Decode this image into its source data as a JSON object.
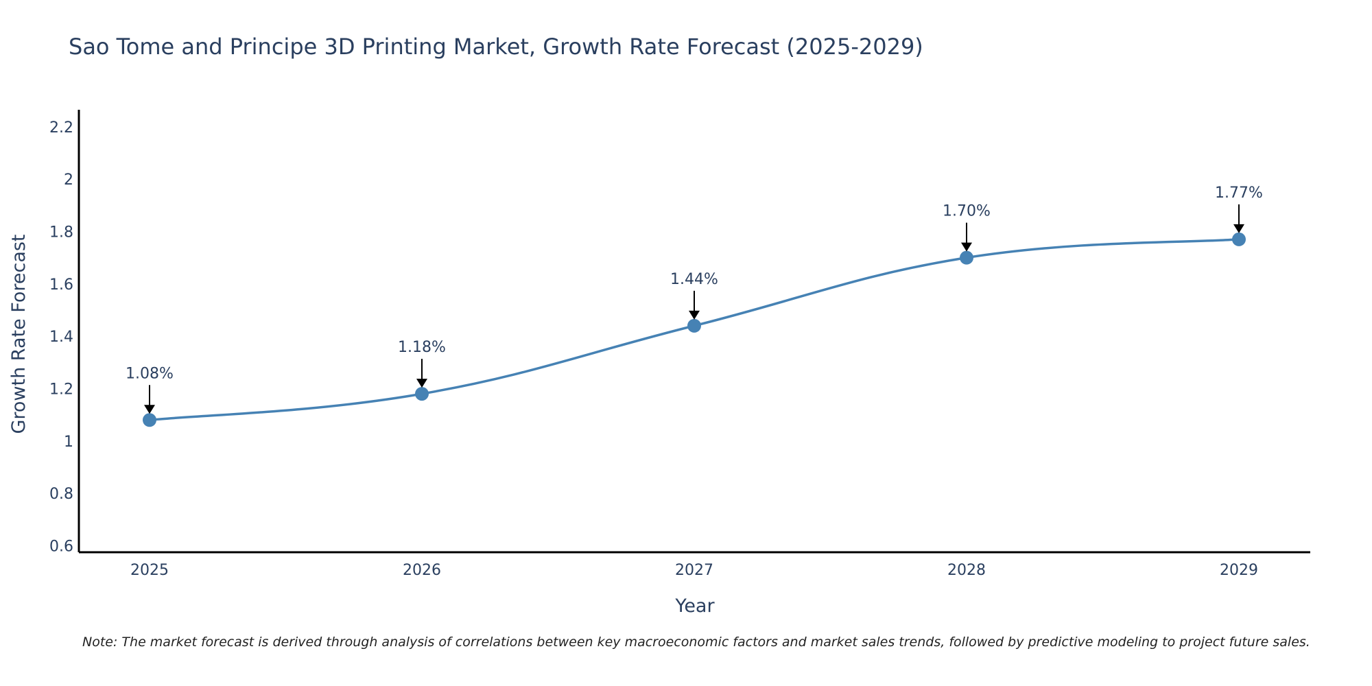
{
  "chart_data": {
    "type": "line",
    "title": "Sao Tome and Principe 3D Printing Market, Growth Rate Forecast (2025-2029)",
    "xlabel": "Year",
    "ylabel": "Growth Rate Forecast",
    "categories": [
      "2025",
      "2026",
      "2027",
      "2028",
      "2029"
    ],
    "series": [
      {
        "name": "Growth Rate Forecast",
        "values": [
          1.08,
          1.18,
          1.44,
          1.7,
          1.77
        ],
        "color": "#4682b4"
      }
    ],
    "data_labels": [
      "1.08%",
      "1.18%",
      "1.44%",
      "1.70%",
      "1.77%"
    ],
    "ylim": [
      0.575,
      2.265
    ],
    "yticks": [
      0.6,
      0.8,
      1,
      1.2,
      1.4,
      1.6,
      1.8,
      2,
      2.2
    ],
    "ytick_labels": [
      "0.6",
      "0.8",
      "1",
      "1.2",
      "1.4",
      "1.6",
      "1.8",
      "2",
      "2.2"
    ],
    "grid": false,
    "legend": "none",
    "line_shape": "spline"
  },
  "note": "Note: The market forecast is derived through analysis of correlations between key macroeconomic factors and market sales trends, followed by predictive modeling to project future sales.",
  "colors": {
    "text": "#2a3f5f",
    "line": "#4682b4",
    "axis": "#000000"
  }
}
